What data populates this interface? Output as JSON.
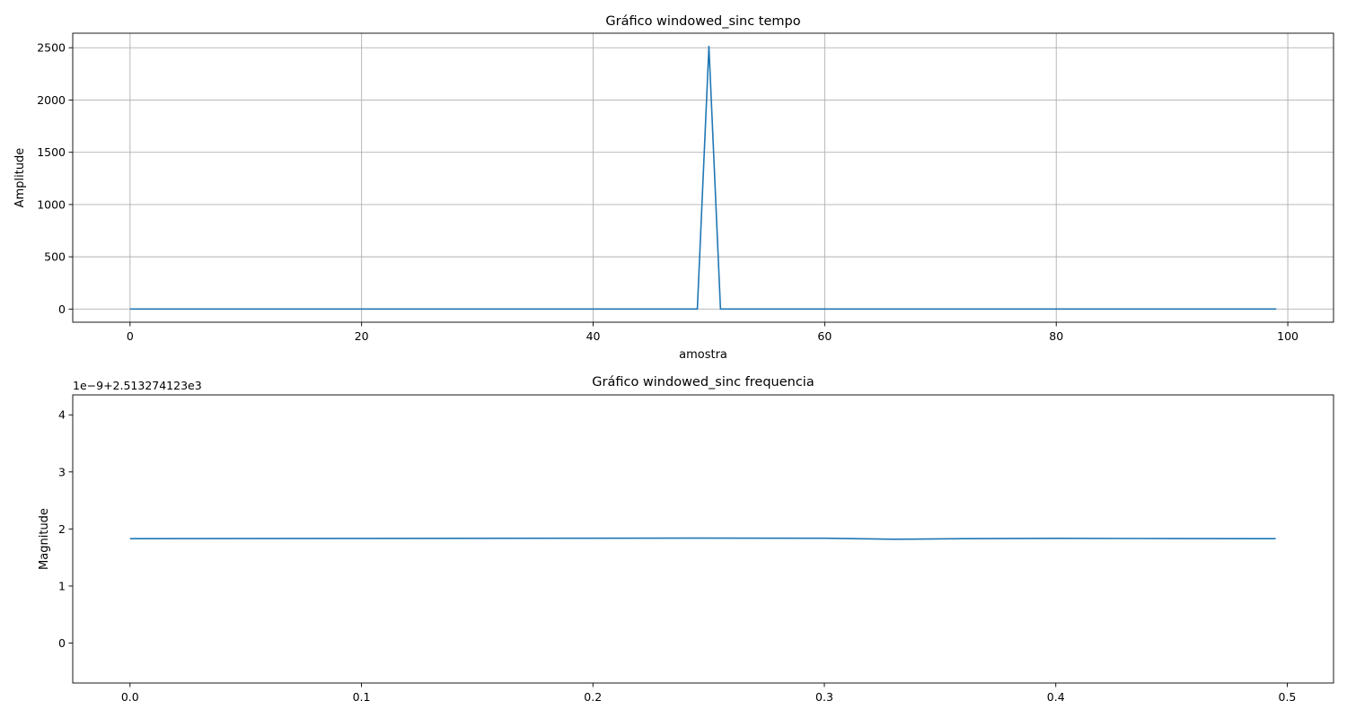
{
  "chart_data": [
    {
      "type": "line",
      "title": "Gráfico windowed_sinc tempo",
      "xlabel": "amostra",
      "ylabel": "Amplitude",
      "xlim": [
        -4.95,
        103.95
      ],
      "ylim": [
        -125.7,
        2639
      ],
      "xticks": [
        0,
        20,
        40,
        60,
        80,
        100
      ],
      "xtick_labels": [
        "0",
        "20",
        "40",
        "60",
        "80",
        "100"
      ],
      "yticks": [
        0,
        500,
        1000,
        1500,
        2000,
        2500
      ],
      "ytick_labels": [
        "0",
        "500",
        "1000",
        "1500",
        "2000",
        "2500"
      ],
      "grid": true,
      "color": "#1f77b4",
      "series": [
        {
          "x": [
            0,
            49,
            50,
            51,
            99
          ],
          "y": [
            0,
            0,
            2513.27,
            0,
            0
          ]
        }
      ]
    },
    {
      "type": "line",
      "title": "Gráfico windowed_sinc frequencia",
      "xlabel": "",
      "ylabel": "Magnitude",
      "offset_text": "1e−9+2.513274123e3",
      "xlim": [
        -0.02475,
        0.52
      ],
      "ylim": [
        -0.7,
        4.35
      ],
      "xticks": [
        0,
        0.1,
        0.2,
        0.3,
        0.4,
        0.5
      ],
      "xtick_labels": [
        "0.0",
        "0.1",
        "0.2",
        "0.3",
        "0.4",
        "0.5"
      ],
      "yticks": [
        0,
        1,
        2,
        3,
        4
      ],
      "ytick_labels": [
        "0",
        "1",
        "2",
        "3",
        "4"
      ],
      "grid": false,
      "color": "#1f77b4",
      "series": [
        {
          "x": [
            0,
            0.1,
            0.2,
            0.25,
            0.3,
            0.33,
            0.36,
            0.4,
            0.45,
            0.495
          ],
          "y": [
            1.83,
            1.834,
            1.838,
            1.84,
            1.838,
            1.82,
            1.83,
            1.835,
            1.832,
            1.83
          ]
        }
      ]
    }
  ]
}
